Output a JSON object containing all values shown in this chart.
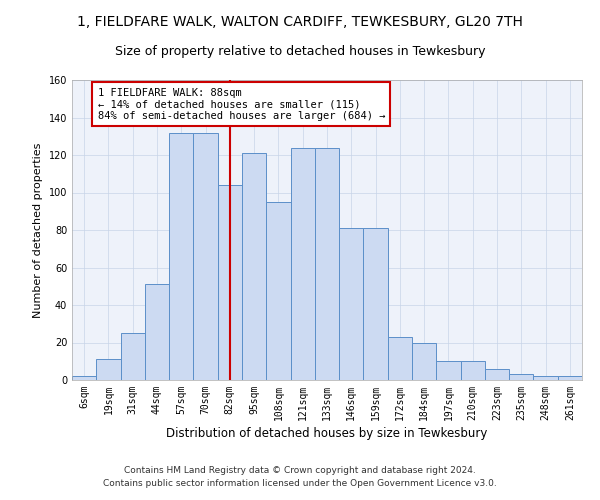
{
  "title1": "1, FIELDFARE WALK, WALTON CARDIFF, TEWKESBURY, GL20 7TH",
  "title2": "Size of property relative to detached houses in Tewkesbury",
  "xlabel": "Distribution of detached houses by size in Tewkesbury",
  "ylabel": "Number of detached properties",
  "bar_labels": [
    "6sqm",
    "19sqm",
    "31sqm",
    "44sqm",
    "57sqm",
    "70sqm",
    "82sqm",
    "95sqm",
    "108sqm",
    "121sqm",
    "133sqm",
    "146sqm",
    "159sqm",
    "172sqm",
    "184sqm",
    "197sqm",
    "210sqm",
    "223sqm",
    "235sqm",
    "248sqm",
    "261sqm"
  ],
  "bar_heights": [
    2,
    11,
    25,
    51,
    132,
    132,
    104,
    121,
    95,
    124,
    124,
    81,
    81,
    23,
    20,
    10,
    10,
    6,
    3,
    2,
    2
  ],
  "bar_color": "#ccdaf2",
  "bar_edge_color": "#5b8fc9",
  "vline_x": 6.0,
  "vline_color": "#cc0000",
  "annotation_text": "1 FIELDFARE WALK: 88sqm\n← 14% of detached houses are smaller (115)\n84% of semi-detached houses are larger (684) →",
  "annotation_box_color": "#ffffff",
  "annotation_box_edge": "#cc0000",
  "ylim": [
    0,
    160
  ],
  "yticks": [
    0,
    20,
    40,
    60,
    80,
    100,
    120,
    140,
    160
  ],
  "footer": "Contains HM Land Registry data © Crown copyright and database right 2024.\nContains public sector information licensed under the Open Government Licence v3.0.",
  "title1_fontsize": 10,
  "title2_fontsize": 9,
  "tick_fontsize": 7,
  "ylabel_fontsize": 8,
  "xlabel_fontsize": 8.5,
  "footer_fontsize": 6.5,
  "annot_fontsize": 7.5
}
